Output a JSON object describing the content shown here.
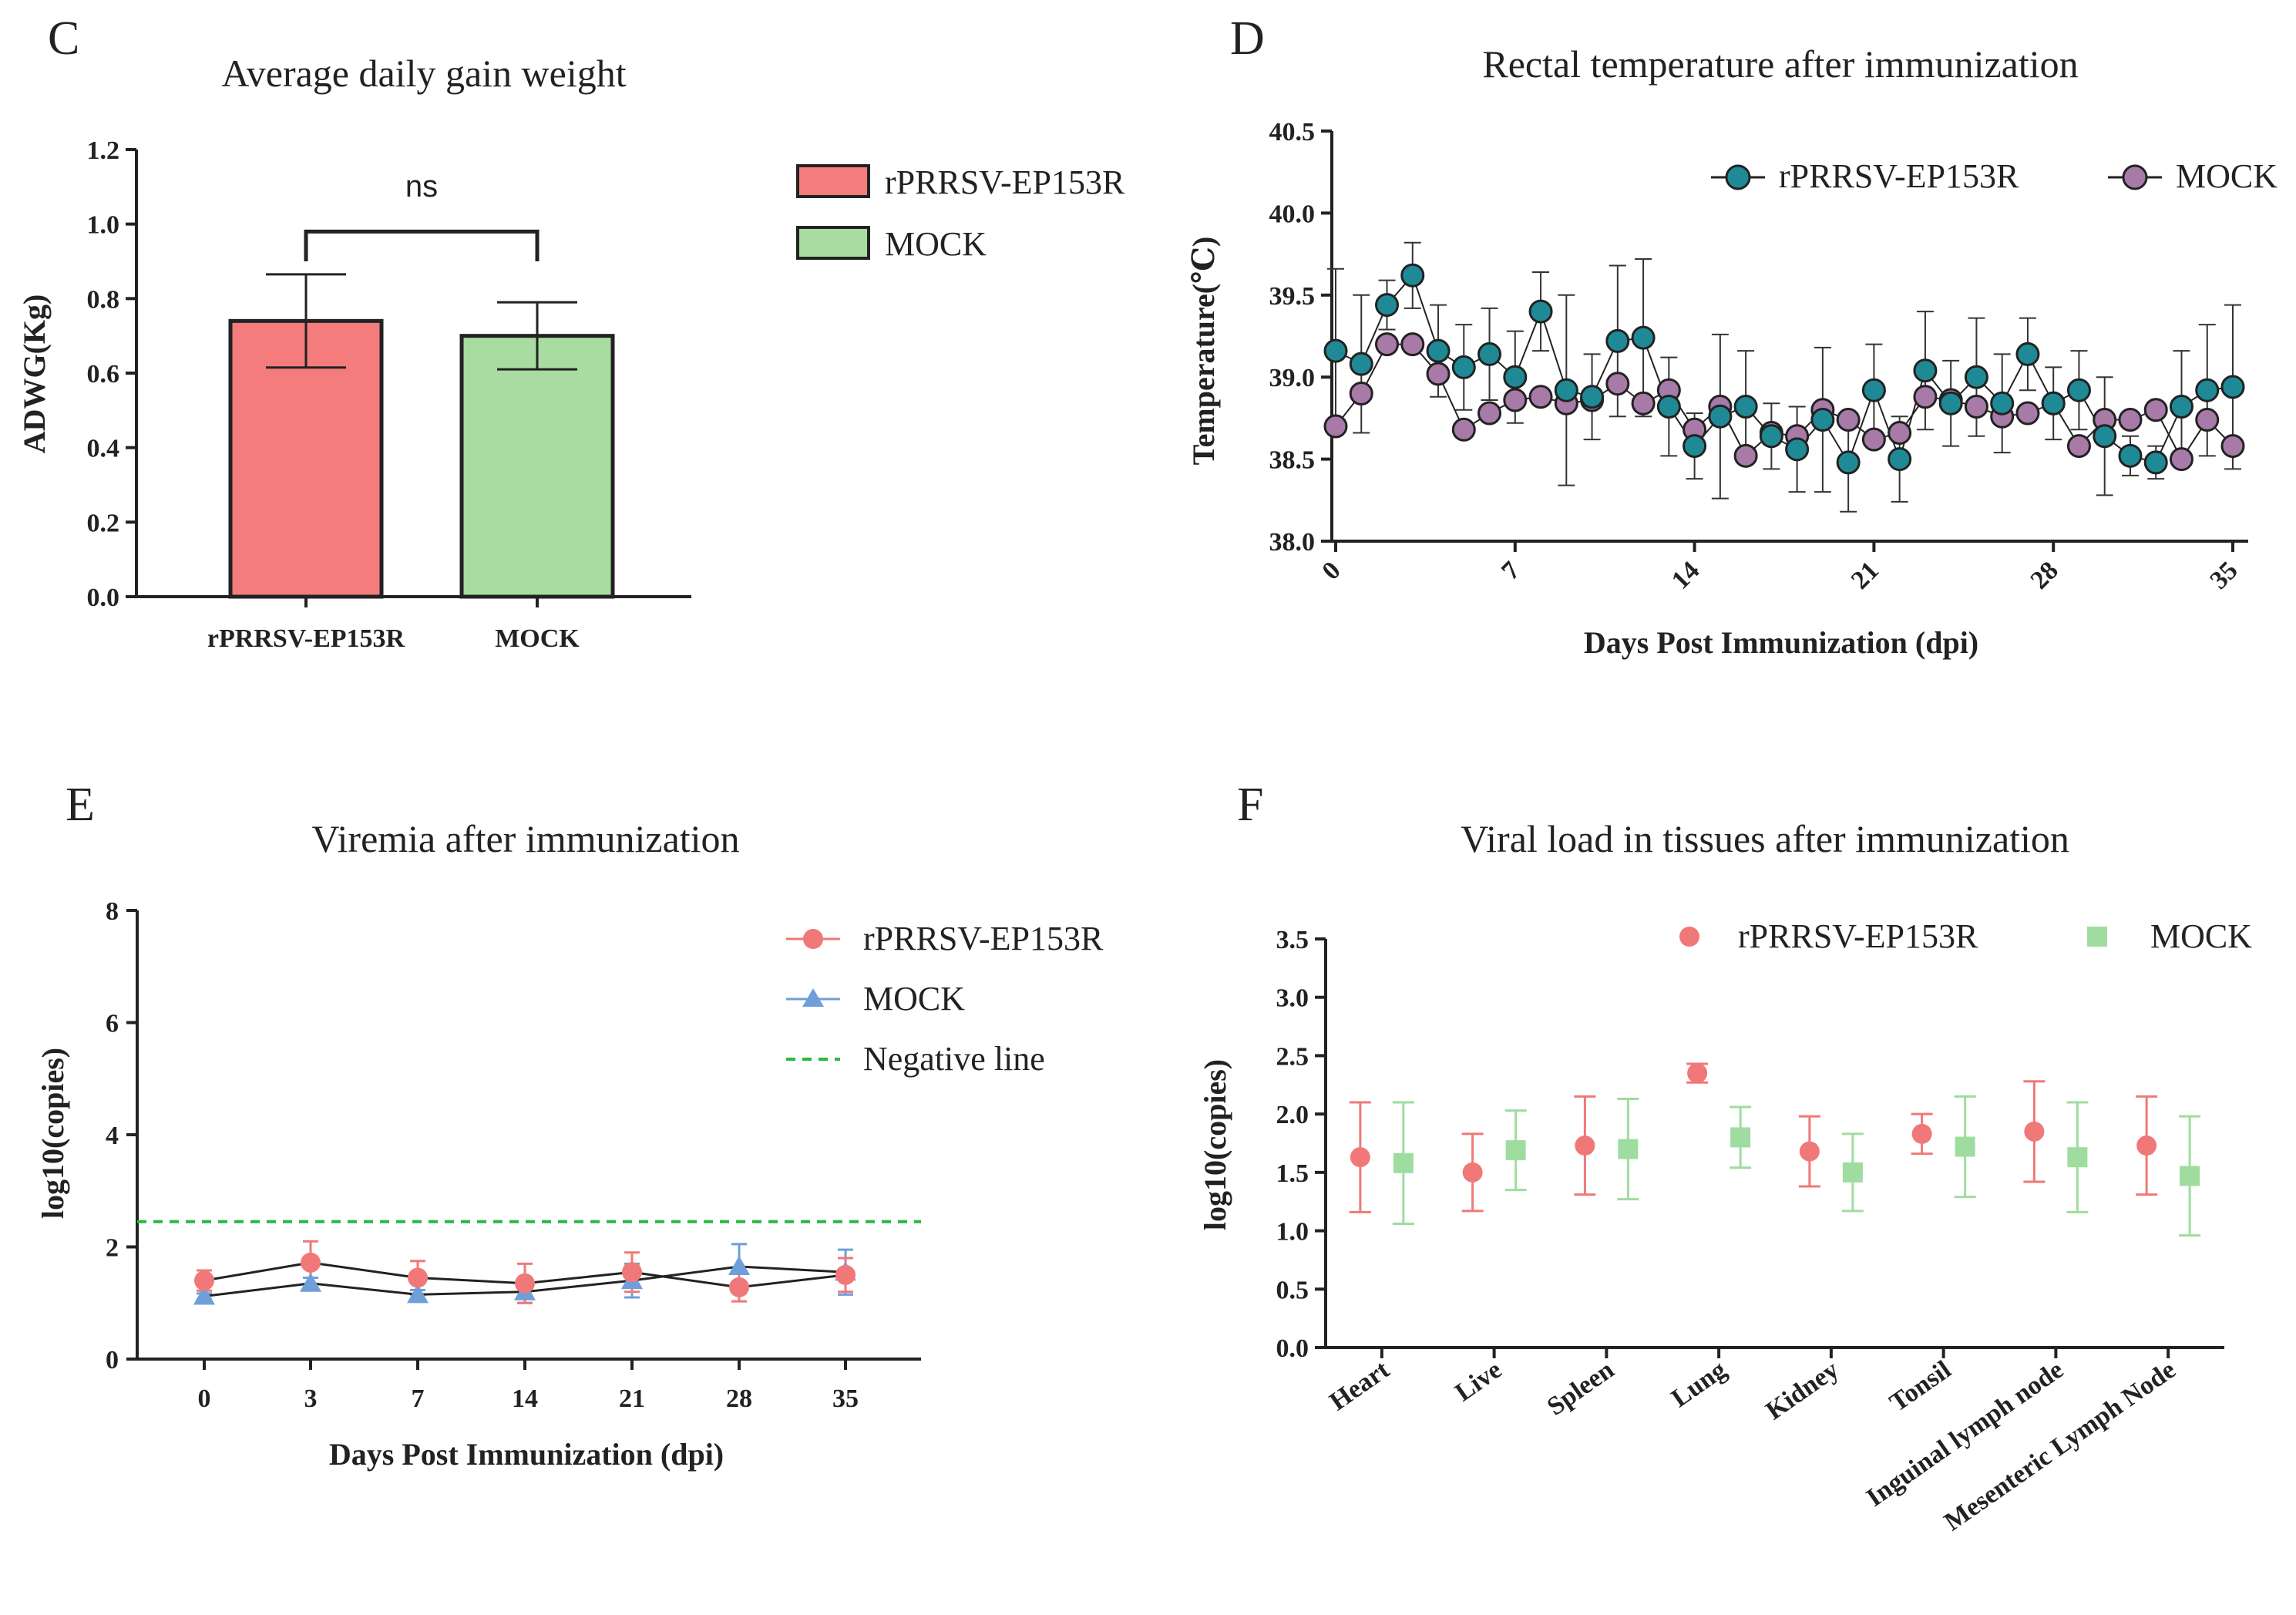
{
  "chart_data": [
    {
      "panel": "C",
      "type": "bar",
      "title": "Average daily gain  weight",
      "ylabel": "ADWG(Kg)",
      "xlabel": "",
      "ylim": [
        0,
        1.2
      ],
      "yticks": [
        "0.0",
        "0.2",
        "0.4",
        "0.6",
        "0.8",
        "1.0",
        "1.2"
      ],
      "categories": [
        "rPRRSV-EP153R",
        "MOCK"
      ],
      "values": [
        0.74,
        0.7
      ],
      "errors": [
        0.125,
        0.09
      ],
      "colors": [
        "#f47c7c",
        "#a8dca0"
      ],
      "significance": "ns",
      "legend": [
        "rPRRSV-EP153R",
        "MOCK"
      ],
      "legend_position": "right"
    },
    {
      "panel": "D",
      "type": "line",
      "title": "Rectal temperature after immunization",
      "ylabel": "Temperature(℃)",
      "xlabel": "Days Post Immunization (dpi)",
      "ylim": [
        38.0,
        40.5
      ],
      "yticks": [
        "38.0",
        "38.5",
        "39.0",
        "39.5",
        "40.0",
        "40.5"
      ],
      "xlim": [
        0,
        35
      ],
      "xticks": [
        "0",
        "7",
        "14",
        "21",
        "28",
        "35"
      ],
      "x": [
        0,
        1,
        2,
        3,
        4,
        5,
        6,
        7,
        8,
        9,
        10,
        11,
        12,
        13,
        14,
        15,
        16,
        17,
        18,
        19,
        20,
        21,
        22,
        23,
        24,
        25,
        26,
        27,
        28,
        29,
        30,
        31,
        32,
        33,
        34,
        35
      ],
      "legend_position": "top-right",
      "series": [
        {
          "name": "rPRRSV-EP153R",
          "color": "#1f8a96",
          "values": [
            39.16,
            39.08,
            39.44,
            39.62,
            39.16,
            39.06,
            39.14,
            39.0,
            39.4,
            38.92,
            38.88,
            39.22,
            39.24,
            38.82,
            38.58,
            38.76,
            38.82,
            38.64,
            38.56,
            38.74,
            38.48,
            38.92,
            38.5,
            39.04,
            38.84,
            39.0,
            38.84,
            39.14,
            38.84,
            38.92,
            38.64,
            38.52,
            38.48,
            38.82,
            38.92,
            38.94
          ],
          "errors": [
            0.5,
            0.42,
            0.15,
            0.2,
            0.28,
            0.26,
            0.28,
            0.28,
            0.24,
            0.58,
            0.26,
            0.46,
            0.48,
            0.3,
            0.2,
            0.5,
            0.34,
            0.2,
            0.26,
            0.44,
            0.3,
            0.28,
            0.26,
            0.36,
            0.26,
            0.36,
            0.3,
            0.22,
            0.22,
            0.24,
            0.36,
            0.12,
            0.1,
            0.34,
            0.4,
            0.5
          ]
        },
        {
          "name": "MOCK",
          "color": "#a87aa8",
          "values": [
            38.7,
            38.9,
            39.2,
            39.2,
            39.02,
            38.68,
            38.78,
            38.86,
            38.88,
            38.84,
            38.86,
            38.96,
            38.84,
            38.92,
            38.68,
            38.82,
            38.52,
            38.66,
            38.64,
            38.8,
            38.74,
            38.62,
            38.66,
            38.88,
            38.86,
            38.82,
            38.76,
            38.78,
            38.84,
            38.58,
            38.74,
            38.74,
            38.8,
            38.5,
            38.74,
            38.58
          ]
        }
      ]
    },
    {
      "panel": "E",
      "type": "line",
      "title": "Viremia after immunization",
      "ylabel": "log10(copies)",
      "xlabel": "Days Post Immunization (dpi)",
      "ylim": [
        0,
        8
      ],
      "yticks": [
        "0",
        "2",
        "4",
        "6",
        "8"
      ],
      "categories": [
        "0",
        "3",
        "7",
        "14",
        "21",
        "28",
        "35"
      ],
      "legend_position": "top-right",
      "series": [
        {
          "name": "rPRRSV-EP153R",
          "color": "#f07878",
          "marker": "circle",
          "values": [
            1.4,
            1.72,
            1.45,
            1.35,
            1.55,
            1.28,
            1.5
          ],
          "errors": [
            0.18,
            0.38,
            0.3,
            0.35,
            0.35,
            0.25,
            0.3
          ]
        },
        {
          "name": "MOCK",
          "color": "#6f9fd8",
          "marker": "triangle",
          "values": [
            1.12,
            1.35,
            1.15,
            1.2,
            1.4,
            1.65,
            1.55
          ],
          "errors": [
            0.05,
            0.1,
            0.08,
            0.2,
            0.3,
            0.4,
            0.4
          ]
        }
      ],
      "reference_line": {
        "name": "Negative line",
        "value": 2.45,
        "color": "#2db83d"
      }
    },
    {
      "panel": "F",
      "type": "scatter",
      "title": "Viral load in tissues after immunization",
      "ylabel": "log10(copies)",
      "xlabel": "",
      "ylim": [
        0,
        3.5
      ],
      "yticks": [
        "0.0",
        "0.5",
        "1.0",
        "1.5",
        "2.0",
        "2.5",
        "3.0",
        "3.5"
      ],
      "categories": [
        "Heart",
        "Live",
        "Spleen",
        "Lung",
        "Kidney",
        "Tonsil",
        "Inguinal lymph node",
        "Mesenteric Lymph Node"
      ],
      "legend_position": "top-right",
      "series": [
        {
          "name": "rPRRSV-EP153R",
          "color": "#f07878",
          "marker": "circle",
          "values": [
            1.63,
            1.5,
            1.73,
            2.35,
            1.68,
            1.83,
            1.85,
            1.73
          ],
          "errors": [
            0.47,
            0.33,
            0.42,
            0.08,
            0.3,
            0.17,
            0.43,
            0.42
          ]
        },
        {
          "name": "MOCK",
          "color": "#9fdca0",
          "marker": "square",
          "values": [
            1.58,
            1.69,
            1.7,
            1.8,
            1.5,
            1.72,
            1.63,
            1.47
          ],
          "errors": [
            0.52,
            0.34,
            0.43,
            0.26,
            0.33,
            0.43,
            0.47,
            0.51
          ]
        }
      ]
    }
  ]
}
